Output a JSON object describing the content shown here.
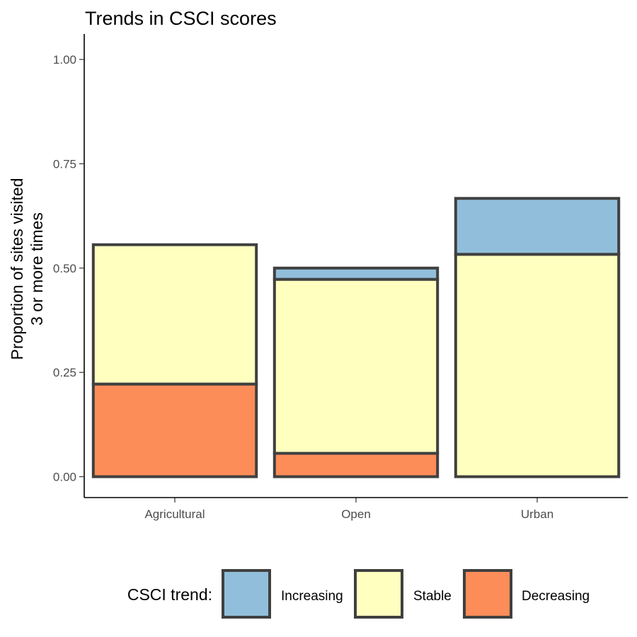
{
  "chart_data": {
    "type": "bar",
    "stacked": true,
    "title": "Trends in CSCI scores",
    "xlabel": "",
    "ylabel_lines": [
      "Proportion of sites visited",
      "3 or more times"
    ],
    "categories": [
      "Agricultural",
      "Open",
      "Urban"
    ],
    "ylim": [
      -0.05,
      1.04
    ],
    "yticks": [
      0.0,
      0.25,
      0.5,
      0.75,
      1.0
    ],
    "ytick_labels": [
      "0.00",
      "0.25",
      "0.50",
      "0.75",
      "1.00"
    ],
    "grid": false,
    "series": [
      {
        "name": "Decreasing",
        "color": "#FC8D59",
        "values": [
          0.222,
          0.056,
          0.0
        ]
      },
      {
        "name": "Stable",
        "color": "#FFFFBF",
        "values": [
          0.334,
          0.417,
          0.533
        ]
      },
      {
        "name": "Increasing",
        "color": "#91BFDB",
        "values": [
          0.0,
          0.027,
          0.134
        ]
      }
    ],
    "legend": {
      "title": "CSCI trend:",
      "position": "bottom",
      "items": [
        {
          "label": "Increasing",
          "color": "#91BFDB"
        },
        {
          "label": "Stable",
          "color": "#FFFFBF"
        },
        {
          "label": "Decreasing",
          "color": "#FC8D59"
        }
      ]
    }
  }
}
